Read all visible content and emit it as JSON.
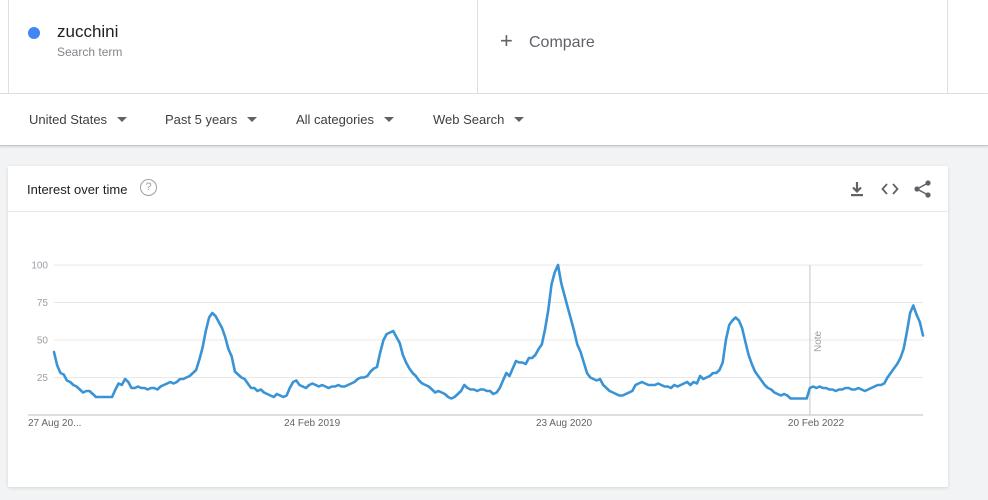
{
  "search": {
    "term": "zucchini",
    "term_type": "Search term",
    "term_color": "#4285f4",
    "compare_label": "Compare"
  },
  "filters": [
    {
      "label": "United States"
    },
    {
      "label": "Past 5 years"
    },
    {
      "label": "All categories"
    },
    {
      "label": "Web Search"
    }
  ],
  "card": {
    "title": "Interest over time",
    "help_icon": "help-circle-icon",
    "tools": [
      "download-icon",
      "embed-code-icon",
      "share-icon"
    ]
  },
  "chart_data": {
    "type": "line",
    "title": "",
    "xlabel": "",
    "ylabel": "",
    "ylim": [
      0,
      100
    ],
    "yticks": [
      25,
      50,
      75,
      100
    ],
    "grid": true,
    "x_tick_labels": [
      "27 Aug 20...",
      "24 Feb 2019",
      "23 Aug 2020",
      "20 Feb 2022"
    ],
    "x_tick_indices": [
      0,
      78,
      156,
      234
    ],
    "annotation": {
      "text": "Note",
      "index": 234
    },
    "series": [
      {
        "color": "#3a93d5",
        "values": [
          42,
          33,
          28,
          27,
          23,
          22,
          20,
          19,
          17,
          15,
          16,
          16,
          14,
          12,
          12,
          12,
          12,
          12,
          12,
          17,
          21,
          20,
          24,
          22,
          18,
          18,
          19,
          18,
          18,
          17,
          18,
          18,
          17,
          19,
          20,
          21,
          22,
          21,
          22,
          24,
          24,
          25,
          26,
          28,
          30,
          37,
          45,
          56,
          65,
          68,
          66,
          62,
          58,
          52,
          44,
          39,
          29,
          27,
          25,
          24,
          21,
          18,
          18,
          16,
          17,
          15,
          14,
          13,
          12,
          14,
          13,
          12,
          13,
          18,
          22,
          23,
          20,
          19,
          18,
          20,
          21,
          20,
          19,
          20,
          19,
          18,
          19,
          19,
          20,
          19,
          19,
          20,
          21,
          22,
          24,
          25,
          25,
          26,
          29,
          31,
          32,
          42,
          50,
          54,
          55,
          56,
          52,
          48,
          40,
          35,
          31,
          28,
          26,
          23,
          21,
          20,
          19,
          17,
          15,
          16,
          15,
          14,
          12,
          11,
          12,
          14,
          16,
          20,
          18,
          17,
          17,
          16,
          17,
          17,
          16,
          16,
          14,
          15,
          18,
          23,
          28,
          26,
          31,
          36,
          35,
          35,
          34,
          38,
          38,
          40,
          44,
          47,
          57,
          70,
          87,
          95,
          100,
          88,
          80,
          72,
          64,
          56,
          47,
          42,
          35,
          28,
          25,
          24,
          23,
          24,
          20,
          18,
          16,
          15,
          14,
          13,
          13,
          14,
          15,
          16,
          20,
          21,
          22,
          21,
          20,
          20,
          20,
          21,
          20,
          19,
          19,
          18,
          20,
          19,
          20,
          21,
          22,
          20,
          22,
          21,
          26,
          24,
          25,
          26,
          28,
          28,
          30,
          35,
          50,
          60,
          63,
          65,
          63,
          58,
          49,
          40,
          34,
          29,
          26,
          23,
          20,
          18,
          17,
          15,
          14,
          13,
          14,
          13,
          11,
          11,
          11,
          11,
          11,
          11,
          18,
          19,
          18,
          19,
          18,
          18,
          17,
          17,
          16,
          17,
          17,
          18,
          18,
          17,
          17,
          18,
          17,
          16,
          17,
          18,
          19,
          20,
          20,
          21,
          25,
          28,
          31,
          34,
          38,
          44,
          55,
          68,
          73,
          67,
          62,
          53
        ]
      }
    ]
  }
}
